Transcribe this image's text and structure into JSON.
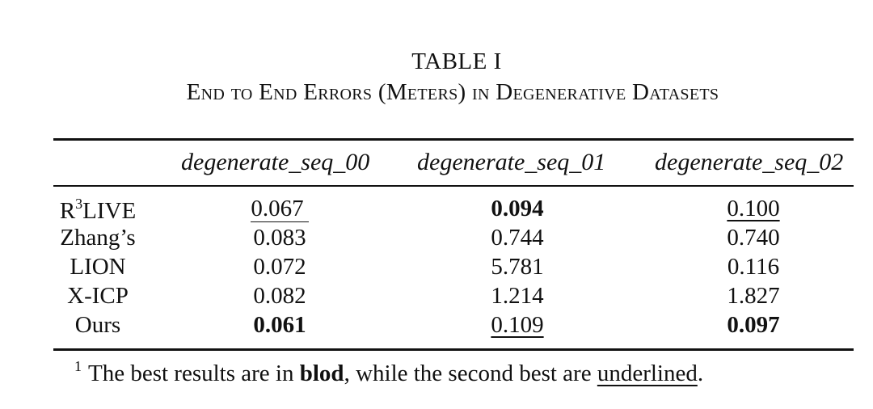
{
  "caption": {
    "number": "TABLE I",
    "title": "End to End Errors (Meters) in Degenerative Datasets"
  },
  "columns": [
    "degenerate_seq_00",
    "degenerate_seq_01",
    "degenerate_seq_02"
  ],
  "rows": [
    {
      "label_main": "R",
      "label_sup": "3",
      "label_rest": "LIVE",
      "cells": [
        {
          "value": "0.067",
          "style": "underline"
        },
        {
          "value": "0.094",
          "style": "bold"
        },
        {
          "value": "0.100",
          "style": "underline"
        }
      ]
    },
    {
      "label_main": "Zhang’s",
      "cells": [
        {
          "value": "0.083",
          "style": "normal"
        },
        {
          "value": "0.744",
          "style": "normal"
        },
        {
          "value": "0.740",
          "style": "normal"
        }
      ]
    },
    {
      "label_main": "LION",
      "cells": [
        {
          "value": "0.072",
          "style": "normal"
        },
        {
          "value": "5.781",
          "style": "normal"
        },
        {
          "value": "0.116",
          "style": "normal"
        }
      ]
    },
    {
      "label_main": "X-ICP",
      "cells": [
        {
          "value": "0.082",
          "style": "normal"
        },
        {
          "value": "1.214",
          "style": "normal"
        },
        {
          "value": "1.827",
          "style": "normal"
        }
      ]
    },
    {
      "label_main": "Ours",
      "cells": [
        {
          "value": "0.061",
          "style": "bold"
        },
        {
          "value": "0.109",
          "style": "underline"
        },
        {
          "value": "0.097",
          "style": "bold"
        }
      ]
    }
  ],
  "footnote": {
    "marker": "1",
    "text_before": "The best results are in ",
    "bold_word": "blod",
    "text_middle": ", while the second best are ",
    "underlined_word": "underlined",
    "text_after": "."
  }
}
